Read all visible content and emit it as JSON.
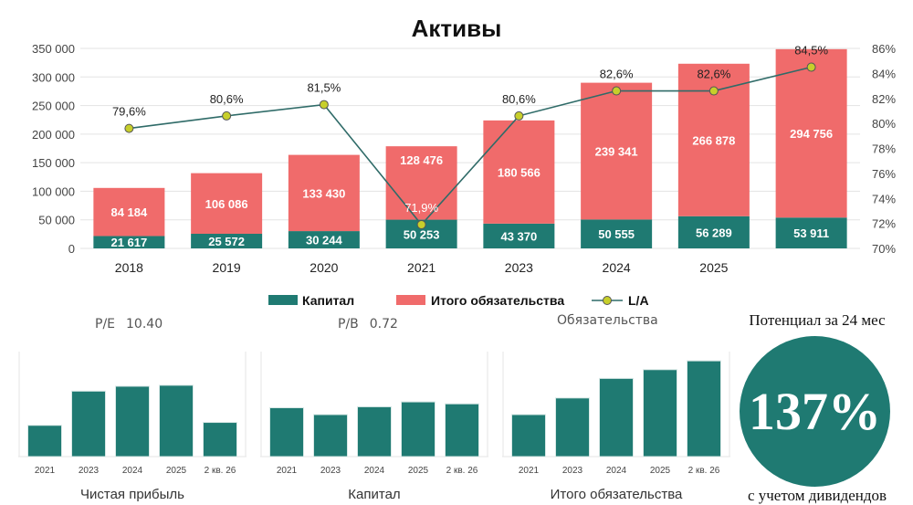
{
  "chart_data": [
    {
      "type": "bar",
      "title": "Активы",
      "categories": [
        "2018",
        "2019",
        "2020",
        "2021",
        "2023",
        "2024",
        "2025",
        ""
      ],
      "series": [
        {
          "name": "Капитал",
          "values": [
            21617,
            25572,
            30244,
            50253,
            43370,
            50555,
            56289,
            53911
          ],
          "labels": [
            "21 617",
            "25 572",
            "30 244",
            "50 253",
            "43 370",
            "50 555",
            "56 289",
            "53 911"
          ]
        },
        {
          "name": "Итого обязательства",
          "values": [
            84184,
            106086,
            133430,
            128476,
            180566,
            239341,
            266878,
            294756
          ],
          "labels": [
            "84 184",
            "106 086",
            "133 430",
            "128 476",
            "180 566",
            "239 341",
            "266 878",
            "294 756"
          ]
        }
      ],
      "line_series": {
        "name": "L/A",
        "values": [
          79.6,
          80.6,
          81.5,
          71.9,
          80.6,
          82.6,
          82.6,
          84.5
        ],
        "labels": [
          "79,6%",
          "80,6%",
          "81,5%",
          "71,9%",
          "80,6%",
          "82,6%",
          "82,6%",
          "84,5%"
        ]
      },
      "stacked": true,
      "ylim": [
        0,
        350000
      ],
      "y_ticks": [
        "0",
        "50 000",
        "100 000",
        "150 000",
        "200 000",
        "250 000",
        "300 000",
        "350 000"
      ],
      "y2lim": [
        70,
        86
      ],
      "y2_ticks": [
        "70%",
        "72%",
        "74%",
        "76%",
        "78%",
        "80%",
        "82%",
        "84%",
        "86%"
      ],
      "legend": "bottom",
      "grid": true
    },
    {
      "type": "bar",
      "title": "Чистая прибыль",
      "categories": [
        "2021",
        "2023",
        "2024",
        "2025",
        "2 кв. 26"
      ],
      "values": [
        0.32,
        0.67,
        0.72,
        0.73,
        0.35
      ]
    },
    {
      "type": "bar",
      "title": "Капитал",
      "categories": [
        "2021",
        "2023",
        "2024",
        "2025",
        "2 кв. 26"
      ],
      "values": [
        0.5,
        0.43,
        0.51,
        0.56,
        0.54
      ]
    },
    {
      "type": "bar",
      "title": "Итого обязательства",
      "categories": [
        "2021",
        "2023",
        "2024",
        "2025",
        "2 кв. 26"
      ],
      "values": [
        0.43,
        0.6,
        0.8,
        0.89,
        0.98
      ]
    }
  ],
  "colors": {
    "capital": "#1f7a72",
    "liabilities": "#f06b6b",
    "line": "#2f6b68",
    "marker": "#c7cf2b"
  },
  "mini": {
    "pe": {
      "label": "P/E",
      "value": "10.40"
    },
    "pb": {
      "label": "P/B",
      "value": "0.72"
    },
    "liab_top": "Обязательства"
  },
  "badge": {
    "top_text": "Потенциал за 24 мес",
    "value": "137%",
    "bottom_text": "с учетом дивидендов"
  }
}
